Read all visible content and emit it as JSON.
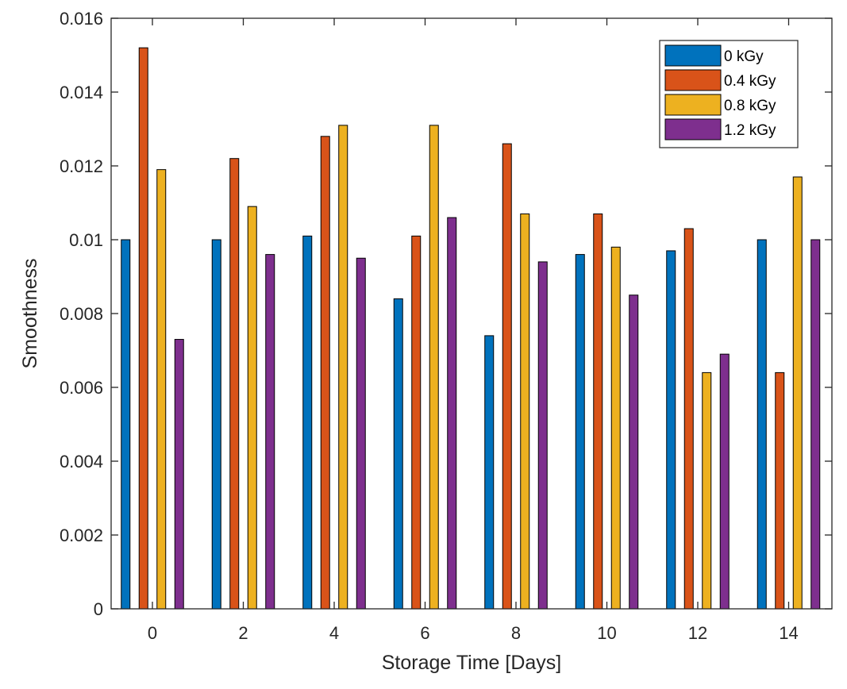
{
  "chart_data": {
    "type": "bar",
    "xlabel": "Storage Time [Days]",
    "ylabel": "Smoothness",
    "categories": [
      "0",
      "2",
      "4",
      "6",
      "8",
      "10",
      "12",
      "14"
    ],
    "ylim": [
      0,
      0.016
    ],
    "yticks": [
      "0",
      "0.002",
      "0.004",
      "0.006",
      "0.008",
      "0.01",
      "0.012",
      "0.014",
      "0.016"
    ],
    "grid": false,
    "legend_position": "top-right",
    "series": [
      {
        "name": "0 kGy",
        "color": "#0072BD",
        "values": [
          0.01,
          0.01,
          0.0101,
          0.0084,
          0.0074,
          0.0096,
          0.0097,
          0.01
        ]
      },
      {
        "name": "0.4 kGy",
        "color": "#D95319",
        "values": [
          0.0152,
          0.0122,
          0.0128,
          0.0101,
          0.0126,
          0.0107,
          0.0103,
          0.0064
        ]
      },
      {
        "name": "0.8 kGy",
        "color": "#EDB120",
        "values": [
          0.0119,
          0.0109,
          0.0131,
          0.0131,
          0.0107,
          0.0098,
          0.0064,
          0.0117
        ]
      },
      {
        "name": "1.2 kGy",
        "color": "#7E2F8E",
        "values": [
          0.0073,
          0.0096,
          0.0095,
          0.0106,
          0.0094,
          0.0085,
          0.0069,
          0.01
        ]
      }
    ]
  }
}
